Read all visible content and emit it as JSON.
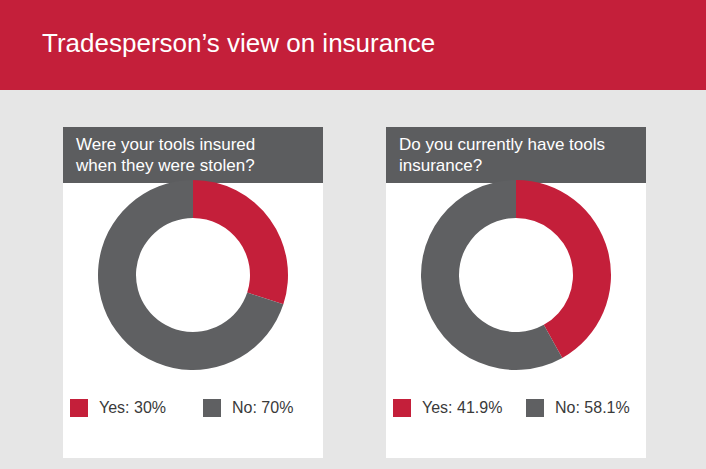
{
  "title": "Tradesperson’s view on insurance",
  "chart_data": [
    {
      "type": "pie",
      "title": "Were your tools insured when they were stolen?",
      "categories": [
        "Yes: 30%",
        "No: 70%"
      ],
      "values": [
        30,
        70
      ],
      "colors": [
        "#c41f3a",
        "#5f6062"
      ],
      "legend": "bottom"
    },
    {
      "type": "pie",
      "title": "Do you currently have tools insurance?",
      "categories": [
        "Yes: 41.9%",
        "No: 58.1%"
      ],
      "values": [
        41.9,
        58.1
      ],
      "colors": [
        "#c41f3a",
        "#5f6062"
      ],
      "legend": "bottom"
    }
  ]
}
